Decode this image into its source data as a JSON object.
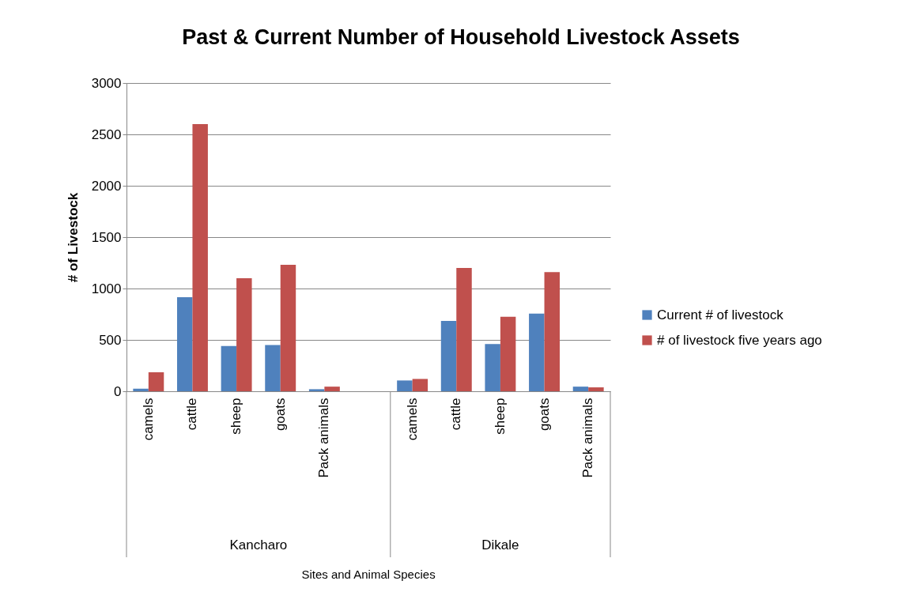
{
  "chart_data": {
    "type": "bar",
    "title": "Past & Current Number of Household Livestock Assets",
    "ylabel": "# of Livestock",
    "categories": [
      "camels",
      "cattle",
      "sheep",
      "goats",
      "Pack animals",
      null,
      "camels",
      "cattle",
      "sheep",
      "goats",
      "Pack animals"
    ],
    "series": [
      {
        "name": "Current # of livestock",
        "color": "#4f81bd",
        "values": [
          25,
          915,
          440,
          450,
          20,
          null,
          105,
          685,
          460,
          755,
          45
        ]
      },
      {
        "name": "# of livestock five years ago",
        "color": "#c0504d",
        "values": [
          185,
          2600,
          1100,
          1230,
          45,
          null,
          120,
          1200,
          725,
          1160,
          38
        ]
      }
    ],
    "annotations": [
      "Kancharo",
      "Dikale",
      "Sites and Animal Species"
    ],
    "ylim": [
      0,
      3000
    ],
    "yticks": [
      0,
      500,
      1000,
      1500,
      2000,
      2500,
      3000
    ],
    "grid": "y",
    "legend": "right"
  }
}
